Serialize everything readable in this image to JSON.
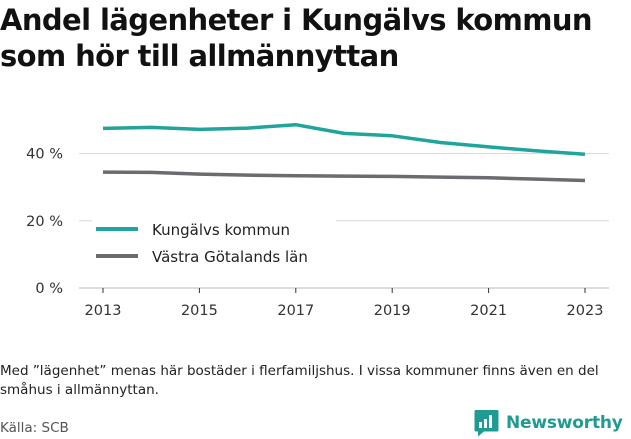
{
  "title": "Andel lägenheter i Kungälvs kommun som hör till allmännyttan",
  "note": "Med ”lägenhet” menas här bostäder i flerfamiljshus. I vissa kommuner finns även en del småhus i allmännyttan.",
  "source": "Källa: SCB",
  "brand": {
    "name": "Newsworthy",
    "icon": "newsworthy-logo-icon"
  },
  "colors": {
    "primary": "#1fa59b",
    "secondary": "#6b6b70",
    "grid": "#d9d9d9"
  },
  "chart_data": {
    "type": "line",
    "title": "Andel lägenheter i Kungälvs kommun som hör till allmännyttan",
    "x": [
      2013,
      2014,
      2015,
      2016,
      2017,
      2018,
      2019,
      2020,
      2021,
      2022,
      2023
    ],
    "series": [
      {
        "name": "Kungälvs kommun",
        "color": "#1fa59b",
        "values": [
          47.5,
          47.8,
          47.2,
          47.6,
          48.6,
          46.0,
          45.3,
          43.3,
          42.0,
          40.8,
          39.8
        ]
      },
      {
        "name": "Västra Götalands län",
        "color": "#6b6b70",
        "values": [
          34.5,
          34.4,
          33.9,
          33.6,
          33.4,
          33.3,
          33.2,
          33.0,
          32.8,
          32.4,
          32.0
        ]
      }
    ],
    "y_ticks": [
      0,
      20,
      40
    ],
    "y_tick_labels": [
      "0 %",
      "20 %",
      "40 %"
    ],
    "x_ticks": [
      2013,
      2015,
      2017,
      2019,
      2021,
      2023
    ],
    "x_tick_labels": [
      "2013",
      "2015",
      "2017",
      "2019",
      "2021",
      "2023"
    ],
    "ylim": [
      0,
      50
    ],
    "xlim": [
      2013,
      2023
    ],
    "grid": true,
    "legend": "bottom-left"
  }
}
